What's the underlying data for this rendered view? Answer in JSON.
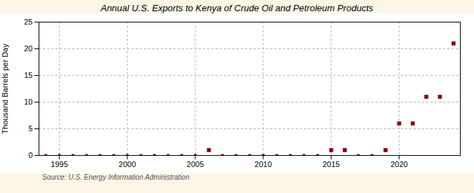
{
  "chart_data": {
    "type": "scatter",
    "title": "Annual U.S. Exports to Kenya of Crude Oil and Petroleum Products",
    "ylabel": "Thousand Barrels per Day",
    "annotations": [
      "Source: U.S. Energy Information Administration"
    ],
    "x": [
      1994,
      1995,
      1996,
      1997,
      1998,
      1999,
      2000,
      2001,
      2002,
      2003,
      2004,
      2005,
      2006,
      2007,
      2008,
      2009,
      2010,
      2011,
      2012,
      2013,
      2014,
      2015,
      2016,
      2017,
      2018,
      2019,
      2020,
      2021,
      2022,
      2023,
      2024
    ],
    "values": [
      0,
      0,
      0,
      0,
      0,
      0,
      0,
      0,
      0,
      0,
      0,
      0,
      1,
      0,
      0,
      0,
      0,
      0,
      0,
      0,
      0,
      1,
      1,
      0,
      0,
      1,
      6,
      6,
      11,
      11,
      21
    ],
    "color": "#8b0000",
    "marker": "square",
    "xlim": [
      1993.5,
      2024.5
    ],
    "xticks": [
      1995,
      2000,
      2005,
      2010,
      2015,
      2020
    ],
    "ylim": [
      0,
      25
    ],
    "yticks": [
      0,
      5,
      10,
      15,
      20,
      25
    ],
    "grid": true
  }
}
